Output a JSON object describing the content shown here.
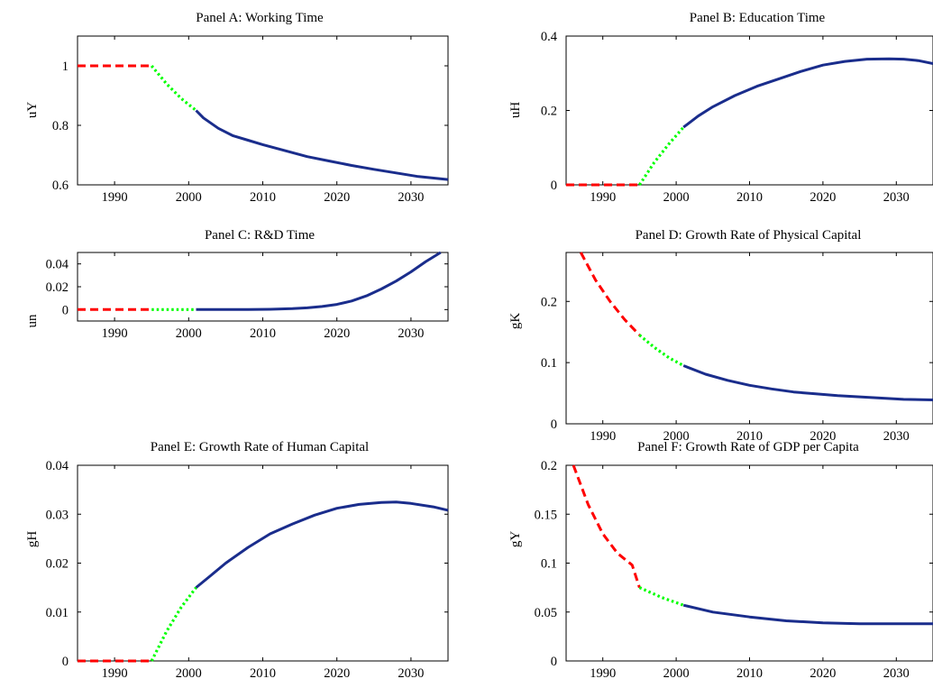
{
  "colors": {
    "historical": "#ff0000",
    "transition": "#00ff00",
    "projection": "#1a2d8c",
    "axis": "#000000"
  },
  "chart_data": [
    {
      "type": "line",
      "title": "Panel A: Working Time",
      "xlabel": "",
      "ylabel": "uY",
      "xlim": [
        1985,
        2035
      ],
      "ylim": [
        0.6,
        1.1
      ],
      "xticks": [
        1990,
        2000,
        2010,
        2020,
        2030
      ],
      "xtick_labels": [
        "1990",
        "2000",
        "2010",
        "2020",
        "2030"
      ],
      "yticks": [
        0.6,
        0.8,
        1.0
      ],
      "ytick_labels": [
        "0.6",
        "0.8",
        "1"
      ],
      "series": [
        {
          "style": "dashed",
          "color": "#ff0000",
          "x": [
            1985,
            1995
          ],
          "y": [
            1.0,
            1.0
          ]
        },
        {
          "style": "dotted",
          "color": "#00ff00",
          "x": [
            1995,
            1997,
            1999,
            2001
          ],
          "y": [
            1.0,
            0.94,
            0.89,
            0.85
          ]
        },
        {
          "style": "solid",
          "color": "#1a2d8c",
          "x": [
            2001,
            2002,
            2004,
            2006,
            2008,
            2010,
            2013,
            2016,
            2019,
            2022,
            2025,
            2028,
            2031,
            2035
          ],
          "y": [
            0.85,
            0.825,
            0.79,
            0.765,
            0.75,
            0.735,
            0.715,
            0.695,
            0.68,
            0.665,
            0.652,
            0.64,
            0.628,
            0.618
          ]
        }
      ]
    },
    {
      "type": "line",
      "title": "Panel B: Education Time",
      "xlabel": "",
      "ylabel": "uH",
      "xlim": [
        1985,
        2035
      ],
      "ylim": [
        0,
        0.4
      ],
      "xticks": [
        1990,
        2000,
        2010,
        2020,
        2030
      ],
      "xtick_labels": [
        "1990",
        "2000",
        "2010",
        "2020",
        "2030"
      ],
      "yticks": [
        0,
        0.2,
        0.4
      ],
      "ytick_labels": [
        "0",
        "0.2",
        "0.4"
      ],
      "series": [
        {
          "style": "dashed",
          "color": "#ff0000",
          "x": [
            1985,
            1995
          ],
          "y": [
            0,
            0
          ]
        },
        {
          "style": "dotted",
          "color": "#00ff00",
          "x": [
            1995,
            1997,
            1999,
            2001
          ],
          "y": [
            0,
            0.06,
            0.11,
            0.155
          ]
        },
        {
          "style": "solid",
          "color": "#1a2d8c",
          "x": [
            2001,
            2003,
            2005,
            2008,
            2011,
            2014,
            2017,
            2020,
            2023,
            2026,
            2029,
            2031,
            2033,
            2035
          ],
          "y": [
            0.155,
            0.185,
            0.21,
            0.24,
            0.265,
            0.285,
            0.305,
            0.322,
            0.332,
            0.338,
            0.339,
            0.338,
            0.334,
            0.326
          ]
        }
      ]
    },
    {
      "type": "line",
      "title": "Panel C: R&D Time",
      "xlabel": "",
      "ylabel": "un",
      "xlim": [
        1985,
        2035
      ],
      "ylim": [
        -0.01,
        0.05
      ],
      "xticks": [
        1990,
        2000,
        2010,
        2020,
        2030
      ],
      "xtick_labels": [
        "1990",
        "2000",
        "2010",
        "2020",
        "2030"
      ],
      "yticks": [
        0,
        0.02,
        0.04
      ],
      "ytick_labels": [
        "0",
        "0.02",
        "0.04"
      ],
      "series": [
        {
          "style": "dashed",
          "color": "#ff0000",
          "x": [
            1985,
            1995
          ],
          "y": [
            0,
            0
          ]
        },
        {
          "style": "dotted",
          "color": "#00ff00",
          "x": [
            1995,
            2001
          ],
          "y": [
            0,
            0
          ]
        },
        {
          "style": "solid",
          "color": "#1a2d8c",
          "x": [
            2001,
            2005,
            2008,
            2011,
            2014,
            2016,
            2018,
            2020,
            2022,
            2024,
            2026,
            2028,
            2030,
            2032,
            2034
          ],
          "y": [
            0,
            0,
            0,
            0.0003,
            0.0008,
            0.0015,
            0.0027,
            0.0045,
            0.0075,
            0.012,
            0.018,
            0.025,
            0.033,
            0.042,
            0.05
          ]
        }
      ]
    },
    {
      "type": "line",
      "title": "Panel D: Growth Rate of Physical Capital",
      "xlabel": "",
      "ylabel": "gK",
      "xlim": [
        1985,
        2035
      ],
      "ylim": [
        0,
        0.28
      ],
      "xticks": [
        1990,
        2000,
        2010,
        2020,
        2030
      ],
      "xtick_labels": [
        "1990",
        "2000",
        "2010",
        "2020",
        "2030"
      ],
      "yticks": [
        0,
        0.1,
        0.2
      ],
      "ytick_labels": [
        "0",
        "0.1",
        "0.2"
      ],
      "series": [
        {
          "style": "dashed",
          "color": "#ff0000",
          "x": [
            1987,
            1989,
            1991,
            1993,
            1995
          ],
          "y": [
            0.28,
            0.235,
            0.2,
            0.17,
            0.145
          ]
        },
        {
          "style": "dotted",
          "color": "#00ff00",
          "x": [
            1995,
            1997,
            1999,
            2001
          ],
          "y": [
            0.145,
            0.125,
            0.108,
            0.095
          ]
        },
        {
          "style": "solid",
          "color": "#1a2d8c",
          "x": [
            2001,
            2004,
            2007,
            2010,
            2013,
            2016,
            2019,
            2022,
            2025,
            2028,
            2031,
            2035
          ],
          "y": [
            0.095,
            0.081,
            0.071,
            0.063,
            0.057,
            0.052,
            0.049,
            0.046,
            0.044,
            0.042,
            0.04,
            0.039
          ]
        }
      ]
    },
    {
      "type": "line",
      "title": "Panel E: Growth Rate of Human Capital",
      "xlabel": "",
      "ylabel": "gH",
      "xlim": [
        1985,
        2035
      ],
      "ylim": [
        0,
        0.04
      ],
      "xticks": [
        1990,
        2000,
        2010,
        2020,
        2030
      ],
      "xtick_labels": [
        "1990",
        "2000",
        "2010",
        "2020",
        "2030"
      ],
      "yticks": [
        0,
        0.01,
        0.02,
        0.03,
        0.04
      ],
      "ytick_labels": [
        "0",
        "0.01",
        "0.02",
        "0.03",
        "0.04"
      ],
      "series": [
        {
          "style": "dashed",
          "color": "#ff0000",
          "x": [
            1985,
            1995
          ],
          "y": [
            0,
            0
          ]
        },
        {
          "style": "dotted",
          "color": "#00ff00",
          "x": [
            1995,
            1997,
            1999,
            2001
          ],
          "y": [
            0,
            0.006,
            0.011,
            0.015
          ]
        },
        {
          "style": "solid",
          "color": "#1a2d8c",
          "x": [
            2001,
            2003,
            2005,
            2008,
            2011,
            2014,
            2017,
            2020,
            2023,
            2026,
            2028,
            2030,
            2033,
            2035
          ],
          "y": [
            0.015,
            0.0175,
            0.02,
            0.0232,
            0.026,
            0.028,
            0.0298,
            0.0312,
            0.032,
            0.0324,
            0.0325,
            0.0322,
            0.0315,
            0.0308
          ]
        }
      ]
    },
    {
      "type": "line",
      "title": "Panel F: Growth Rate of GDP per Capita",
      "xlabel": "",
      "ylabel": "gY",
      "xlim": [
        1985,
        2035
      ],
      "ylim": [
        0,
        0.2
      ],
      "xticks": [
        1990,
        2000,
        2010,
        2020,
        2030
      ],
      "xtick_labels": [
        "1990",
        "2000",
        "2010",
        "2020",
        "2030"
      ],
      "yticks": [
        0,
        0.05,
        0.1,
        0.15,
        0.2
      ],
      "ytick_labels": [
        "0",
        "0.05",
        "0.1",
        "0.15",
        "0.2"
      ],
      "series": [
        {
          "style": "dashed",
          "color": "#ff0000",
          "x": [
            1986,
            1988,
            1990,
            1992,
            1994,
            1995
          ],
          "y": [
            0.2,
            0.16,
            0.13,
            0.11,
            0.098,
            0.075
          ]
        },
        {
          "style": "dotted",
          "color": "#00ff00",
          "x": [
            1995,
            1998,
            2001
          ],
          "y": [
            0.075,
            0.065,
            0.057
          ]
        },
        {
          "style": "solid",
          "color": "#1a2d8c",
          "x": [
            2001,
            2005,
            2010,
            2015,
            2020,
            2025,
            2030,
            2035
          ],
          "y": [
            0.057,
            0.05,
            0.045,
            0.041,
            0.039,
            0.038,
            0.038,
            0.038
          ]
        }
      ]
    }
  ]
}
